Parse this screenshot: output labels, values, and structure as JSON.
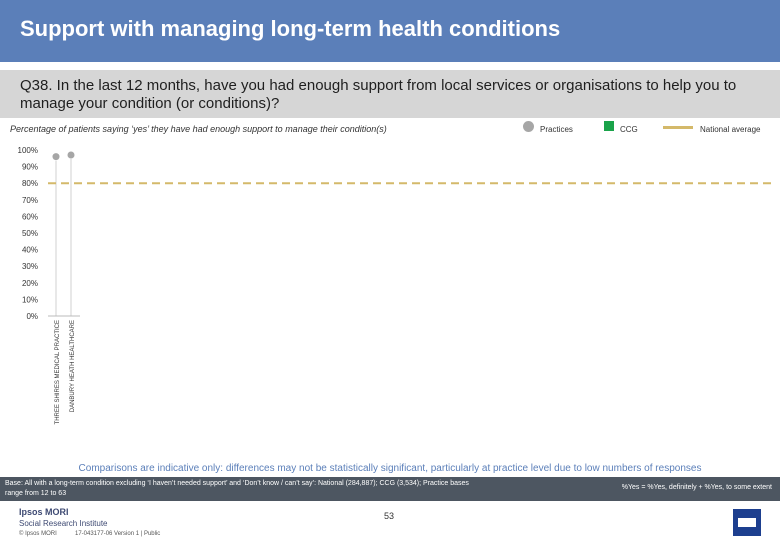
{
  "header": {
    "title": "Support with managing long-term health conditions"
  },
  "question": {
    "text": "Q38. In the last 12 months, have you had enough support from local services or organisations to help you to manage your condition (or conditions)?"
  },
  "subtitle": "Percentage of patients saying ‘yes’ they have had enough support to manage their condition(s)",
  "legend": {
    "practices": "Practices",
    "ccg": "CCG",
    "national": "National average"
  },
  "colors": {
    "title_bar": "#5b7fb9",
    "practice_dot": "#a6a6a6",
    "ccg": "#1aa34a",
    "national_line": "#d4b96a"
  },
  "chart_data": {
    "type": "scatter",
    "categories": [
      "THREE SHIRES MEDICAL PRACTICE",
      "DANBURY HEATH HEALTHCARE"
    ],
    "series": [
      {
        "name": "Practices",
        "values": [
          96,
          97
        ]
      }
    ],
    "national_average": 80,
    "ylim": [
      0,
      100
    ],
    "yticks": [
      "0%",
      "10%",
      "20%",
      "30%",
      "40%",
      "50%",
      "60%",
      "70%",
      "80%",
      "90%",
      "100%"
    ],
    "legend": "top-right",
    "grid": false
  },
  "notes": {
    "comparisons": "Comparisons are indicative only: differences may not be statistically significant, particularly at practice level due to low numbers of responses",
    "base": "Base: All with a long-term condition excluding ‘I haven’t needed support’ and ‘Don’t know / can’t say’: National (284,887); CCG (3,534); Practice bases range from 12 to 63",
    "yes_definition": "%Yes = %Yes, definitely + %Yes, to some extent"
  },
  "footer": {
    "logo_top": "Ipsos MORI",
    "logo_bottom": "Social Research Institute",
    "copyright": "© Ipsos MORI",
    "version": "17-043177-06 Version 1 | Public",
    "page_number": "53"
  }
}
